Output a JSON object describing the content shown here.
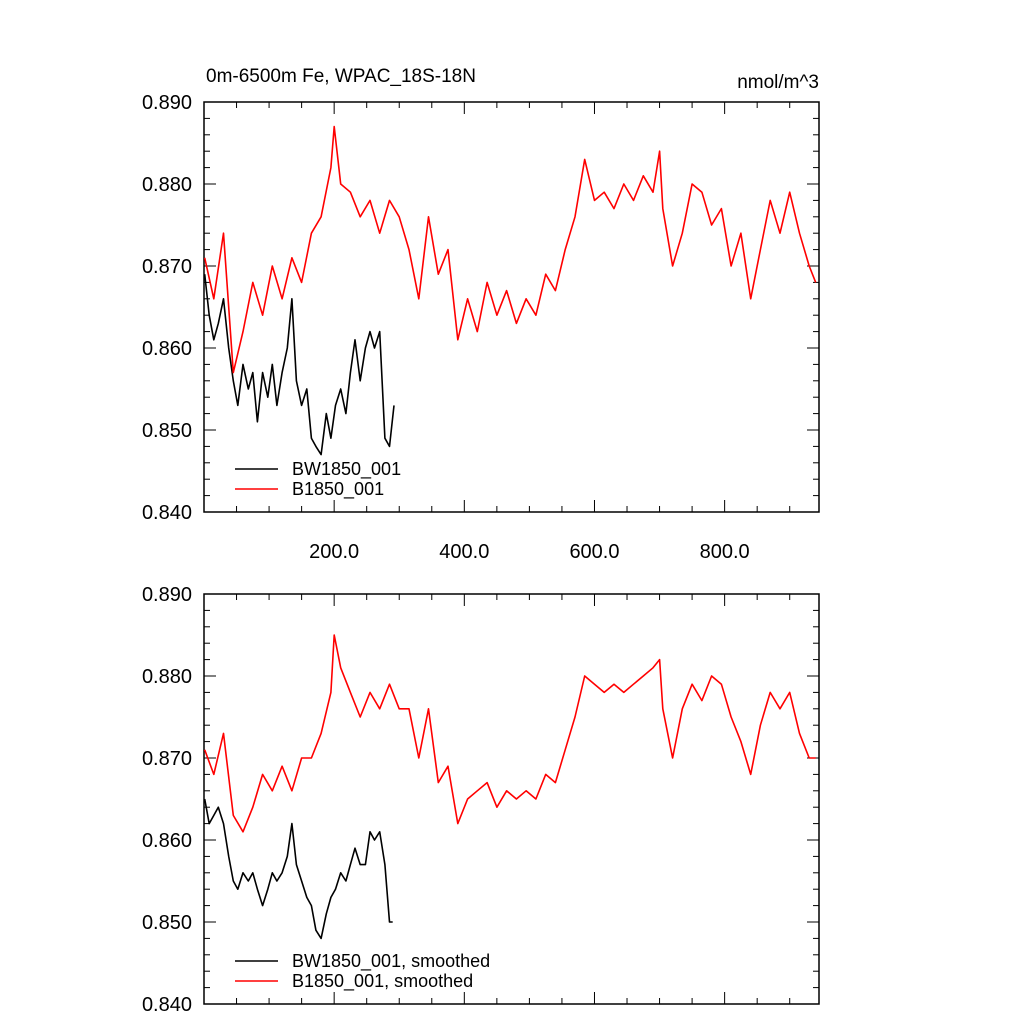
{
  "chart_data": [
    {
      "type": "line",
      "title": "0m-6500m Fe, WPAC_18S-18N",
      "units": "nmol/m^3",
      "xlim": [
        0,
        945
      ],
      "ylim": [
        0.84,
        0.89
      ],
      "xticks": [
        200,
        400,
        600,
        800
      ],
      "xtick_labels": [
        "200.0",
        "400.0",
        "600.0",
        "800.0"
      ],
      "yticks": [
        0.84,
        0.85,
        0.86,
        0.87,
        0.88,
        0.89
      ],
      "ytick_labels": [
        "0.840",
        "0.850",
        "0.860",
        "0.870",
        "0.880",
        "0.890"
      ],
      "grid": false,
      "legend_position": "bottom-left",
      "series": [
        {
          "name": "BW1850_001",
          "color": "#000000",
          "x": [
            1,
            8,
            15,
            22,
            30,
            38,
            45,
            52,
            60,
            68,
            75,
            82,
            90,
            98,
            105,
            112,
            120,
            128,
            135,
            142,
            150,
            158,
            165,
            172,
            180,
            188,
            195,
            202,
            210,
            218,
            225,
            232,
            240,
            248,
            255,
            262,
            270,
            278,
            285,
            292
          ],
          "y": [
            0.869,
            0.864,
            0.861,
            0.863,
            0.866,
            0.86,
            0.856,
            0.853,
            0.858,
            0.855,
            0.857,
            0.851,
            0.857,
            0.854,
            0.858,
            0.853,
            0.857,
            0.86,
            0.866,
            0.856,
            0.853,
            0.855,
            0.849,
            0.848,
            0.847,
            0.852,
            0.849,
            0.853,
            0.855,
            0.852,
            0.857,
            0.861,
            0.856,
            0.86,
            0.862,
            0.86,
            0.862,
            0.849,
            0.848,
            0.853
          ]
        },
        {
          "name": "B1850_001",
          "color": "#ff0000",
          "x": [
            1,
            15,
            30,
            45,
            60,
            75,
            90,
            105,
            120,
            135,
            150,
            165,
            180,
            195,
            200,
            210,
            225,
            240,
            255,
            270,
            285,
            300,
            315,
            330,
            345,
            360,
            375,
            390,
            405,
            420,
            435,
            450,
            465,
            480,
            495,
            510,
            525,
            540,
            555,
            570,
            585,
            600,
            615,
            630,
            645,
            660,
            675,
            690,
            700,
            705,
            720,
            735,
            750,
            765,
            780,
            795,
            810,
            825,
            840,
            855,
            870,
            885,
            900,
            915,
            930,
            940
          ],
          "y": [
            0.871,
            0.866,
            0.874,
            0.857,
            0.862,
            0.868,
            0.864,
            0.87,
            0.866,
            0.871,
            0.868,
            0.874,
            0.876,
            0.882,
            0.887,
            0.88,
            0.879,
            0.876,
            0.878,
            0.874,
            0.878,
            0.876,
            0.872,
            0.866,
            0.876,
            0.869,
            0.872,
            0.861,
            0.866,
            0.862,
            0.868,
            0.864,
            0.867,
            0.863,
            0.866,
            0.864,
            0.869,
            0.867,
            0.872,
            0.876,
            0.883,
            0.878,
            0.879,
            0.877,
            0.88,
            0.878,
            0.881,
            0.879,
            0.884,
            0.877,
            0.87,
            0.874,
            0.88,
            0.879,
            0.875,
            0.877,
            0.87,
            0.874,
            0.866,
            0.872,
            0.878,
            0.874,
            0.879,
            0.874,
            0.87,
            0.868
          ]
        }
      ]
    },
    {
      "type": "line",
      "xlim": [
        0,
        945
      ],
      "ylim": [
        0.84,
        0.89
      ],
      "yticks": [
        0.84,
        0.85,
        0.86,
        0.87,
        0.88,
        0.89
      ],
      "ytick_labels": [
        "0.840",
        "0.850",
        "0.860",
        "0.870",
        "0.880",
        "0.890"
      ],
      "grid": false,
      "legend_position": "bottom-left",
      "series": [
        {
          "name": "BW1850_001, smoothed",
          "color": "#000000",
          "x": [
            1,
            8,
            15,
            22,
            30,
            38,
            45,
            52,
            60,
            68,
            75,
            82,
            90,
            98,
            105,
            112,
            120,
            128,
            135,
            142,
            150,
            158,
            165,
            172,
            180,
            188,
            195,
            202,
            210,
            218,
            225,
            232,
            240,
            248,
            255,
            262,
            270,
            278,
            285,
            290
          ],
          "y": [
            0.865,
            0.862,
            0.863,
            0.864,
            0.862,
            0.858,
            0.855,
            0.854,
            0.856,
            0.855,
            0.856,
            0.854,
            0.852,
            0.854,
            0.856,
            0.855,
            0.856,
            0.858,
            0.862,
            0.857,
            0.855,
            0.853,
            0.852,
            0.849,
            0.848,
            0.851,
            0.853,
            0.854,
            0.856,
            0.855,
            0.857,
            0.859,
            0.857,
            0.857,
            0.861,
            0.86,
            0.861,
            0.857,
            0.85,
            0.85
          ]
        },
        {
          "name": "B1850_001, smoothed",
          "color": "#ff0000",
          "x": [
            1,
            15,
            30,
            45,
            60,
            75,
            90,
            105,
            120,
            135,
            150,
            165,
            180,
            195,
            200,
            210,
            225,
            240,
            255,
            270,
            285,
            300,
            315,
            330,
            345,
            360,
            375,
            390,
            405,
            420,
            435,
            450,
            465,
            480,
            495,
            510,
            525,
            540,
            555,
            570,
            585,
            600,
            615,
            630,
            645,
            660,
            675,
            690,
            700,
            705,
            720,
            735,
            750,
            765,
            780,
            795,
            810,
            825,
            840,
            855,
            870,
            885,
            900,
            915,
            930,
            940
          ],
          "y": [
            0.871,
            0.868,
            0.873,
            0.863,
            0.861,
            0.864,
            0.868,
            0.866,
            0.869,
            0.866,
            0.87,
            0.87,
            0.873,
            0.878,
            0.885,
            0.881,
            0.878,
            0.875,
            0.878,
            0.876,
            0.879,
            0.876,
            0.876,
            0.87,
            0.876,
            0.867,
            0.869,
            0.862,
            0.865,
            0.866,
            0.867,
            0.864,
            0.866,
            0.865,
            0.866,
            0.865,
            0.868,
            0.867,
            0.871,
            0.875,
            0.88,
            0.879,
            0.878,
            0.879,
            0.878,
            0.879,
            0.88,
            0.881,
            0.882,
            0.876,
            0.87,
            0.876,
            0.879,
            0.877,
            0.88,
            0.879,
            0.875,
            0.872,
            0.868,
            0.874,
            0.878,
            0.876,
            0.878,
            0.873,
            0.87,
            0.87
          ]
        }
      ]
    }
  ]
}
